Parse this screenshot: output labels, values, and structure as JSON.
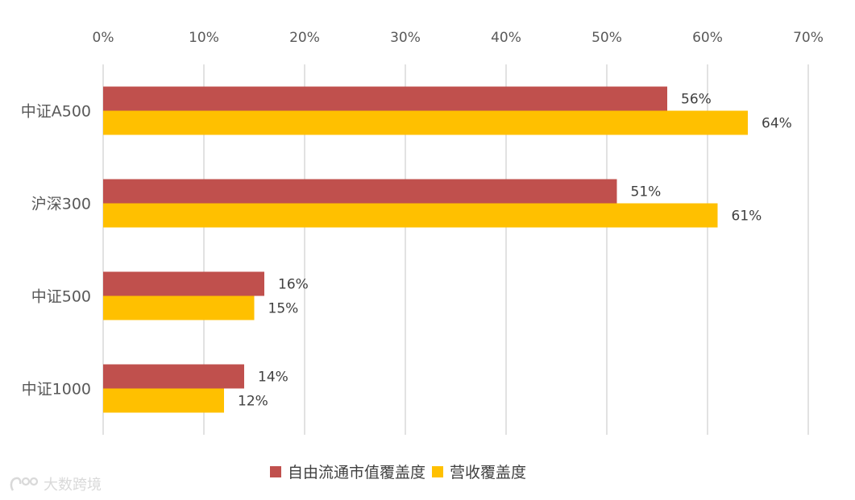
{
  "chart_data": {
    "type": "bar",
    "orientation": "horizontal",
    "categories": [
      "中证A500",
      "沪深300",
      "中证500",
      "中证1000"
    ],
    "series": [
      {
        "name": "自由流通市值覆盖度",
        "color": "#c0504d",
        "values": [
          56,
          51,
          16,
          14
        ],
        "labels": [
          "56%",
          "51%",
          "16%",
          "14%"
        ]
      },
      {
        "name": "营收覆盖度",
        "color": "#ffc000",
        "values": [
          64,
          61,
          15,
          12
        ],
        "labels": [
          "64%",
          "61%",
          "15%",
          "12%"
        ]
      }
    ],
    "xlim": [
      0,
      70
    ],
    "x_ticks": [
      "0%",
      "10%",
      "20%",
      "30%",
      "40%",
      "50%",
      "60%",
      "70%"
    ],
    "x_axis_position": "top",
    "grid": true,
    "legend_position": "bottom"
  },
  "watermark": {
    "text": "大数跨境",
    "icon": "dashuju-logo-icon"
  }
}
